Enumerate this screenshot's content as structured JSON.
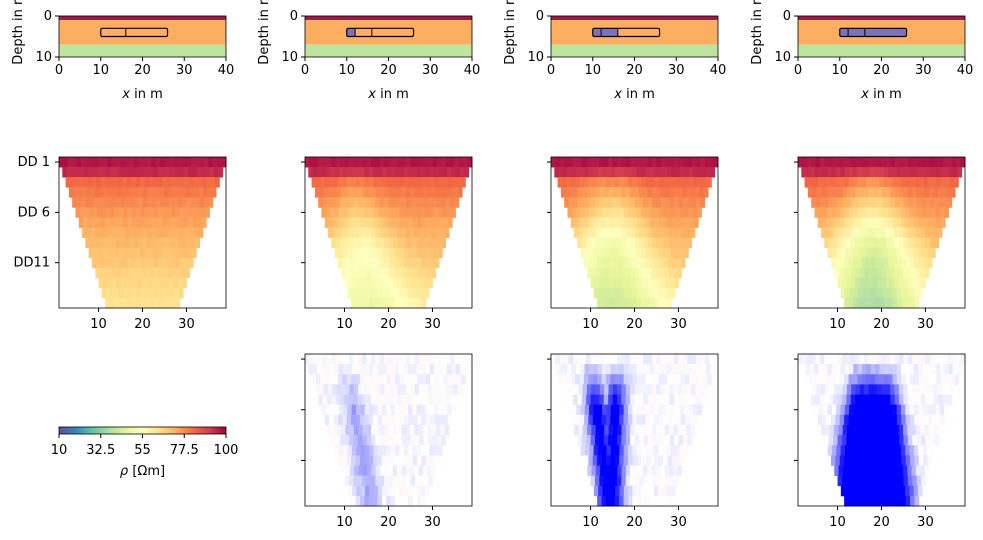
{
  "chart_data": [
    {
      "type": "diagram",
      "panel": "model",
      "xlabel_prefix": "x",
      "xlabel_suffix": " in m",
      "ylabel": "Depth in m",
      "xlim": [
        0,
        40
      ],
      "ylim": [
        10,
        0
      ],
      "xticks": [
        "0",
        "10",
        "20",
        "30",
        "40"
      ],
      "yticks": [
        "0",
        "10"
      ],
      "layers": [
        {
          "top": 0,
          "bottom": 1,
          "color": "#9e1a47"
        },
        {
          "top": 1,
          "bottom": 7,
          "color": "#fdae61"
        },
        {
          "top": 7,
          "bottom": 10,
          "color": "#bde5a0"
        }
      ],
      "models": [
        {
          "box": [
            10,
            26,
            3,
            5
          ],
          "dividers": [
            16
          ],
          "filled": [],
          "fill": "#7b72b8"
        },
        {
          "box": [
            10,
            26,
            3,
            5
          ],
          "dividers": [
            12,
            16
          ],
          "filled": [
            [
              10,
              12
            ]
          ],
          "fill": "#7b72b8"
        },
        {
          "box": [
            10,
            26,
            3,
            5
          ],
          "dividers": [
            12,
            16
          ],
          "filled": [
            [
              10,
              16
            ]
          ],
          "fill": "#7b72b8"
        },
        {
          "box": [
            10,
            26,
            3,
            5
          ],
          "dividers": [
            12,
            16
          ],
          "filled": [
            [
              10,
              26
            ]
          ],
          "fill": "#7b72b8"
        }
      ]
    },
    {
      "type": "heatmap",
      "panel": "pseudosection",
      "yticks": [
        "DD 1",
        "DD 6",
        "DD11"
      ],
      "ytick_levels": [
        1,
        6,
        11
      ],
      "xticks": [
        "10",
        "20",
        "30"
      ],
      "xtick_values": [
        10,
        20,
        30
      ],
      "xlim": [
        1,
        39
      ],
      "levels": 15,
      "anomaly_peak": [
        0,
        0.45,
        0.65,
        0.8
      ]
    },
    {
      "type": "heatmap",
      "panel": "difference",
      "xticks": [
        "10",
        "20",
        "30"
      ],
      "xtick_values": [
        10,
        20,
        30
      ],
      "xlim": [
        1,
        39
      ],
      "panels": 3
    },
    {
      "type": "colorbar",
      "colormap": "Spectral_r",
      "range": [
        10,
        100
      ],
      "ticks": [
        "10",
        "32.5",
        "55",
        "77.5",
        "100"
      ],
      "label_symbol": "ρ",
      "label_unit": " [Ωm]"
    }
  ]
}
